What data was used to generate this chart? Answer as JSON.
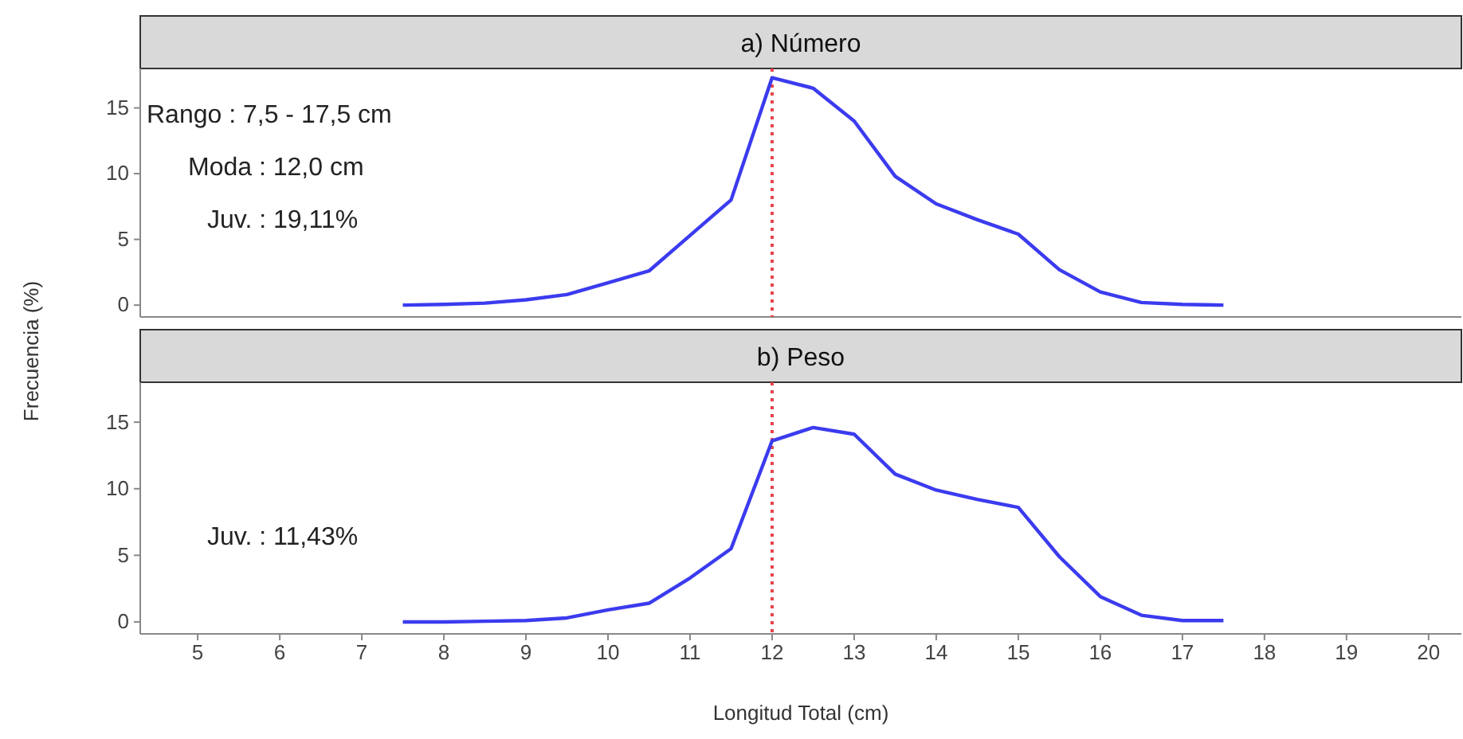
{
  "chart_data": [
    {
      "type": "line",
      "title": "a) Número",
      "ylabel": "Frecuencia (%)",
      "x": [
        7.5,
        8,
        8.5,
        9,
        9.5,
        10,
        10.5,
        11,
        11.5,
        12,
        12.5,
        13,
        13.5,
        14,
        14.5,
        15,
        15.5,
        16,
        16.5,
        17,
        17.5
      ],
      "series": [
        {
          "color": "#3b3bef",
          "values": [
            0,
            0.05,
            0.15,
            0.4,
            0.8,
            1.7,
            2.6,
            5.3,
            8.0,
            17.3,
            16.5,
            14.0,
            9.8,
            7.7,
            6.5,
            5.4,
            2.7,
            1.0,
            0.2,
            0.05,
            0
          ]
        }
      ],
      "xlim": [
        4.3,
        20.4
      ],
      "xticks": [
        5,
        6,
        7,
        8,
        9,
        10,
        11,
        12,
        13,
        14,
        15,
        16,
        17,
        18,
        19,
        20
      ],
      "ylim": [
        -0.9,
        18
      ],
      "yticks": [
        0,
        5,
        10,
        15
      ],
      "tick_labels": "y",
      "marker": "none",
      "line_style": "solid",
      "ref_lines": [
        {
          "axis": "x",
          "value": 12,
          "color": "#e8424a",
          "line_style": "dotted"
        }
      ],
      "annotations": [
        "Rango : 7,5 - 17,5 cm",
        "Moda : 12,0 cm",
        "Juv. : 19,11%"
      ]
    },
    {
      "type": "line",
      "title": "b) Peso",
      "xlabel": "Longitud Total (cm)",
      "x": [
        7.5,
        8,
        8.5,
        9,
        9.5,
        10,
        10.5,
        11,
        11.5,
        12,
        12.5,
        13,
        13.5,
        14,
        14.5,
        15,
        15.5,
        16,
        16.5,
        17,
        17.5
      ],
      "series": [
        {
          "color": "#3b3bef",
          "values": [
            0,
            0,
            0.05,
            0.1,
            0.3,
            0.9,
            1.4,
            3.3,
            5.5,
            13.6,
            14.6,
            14.1,
            11.1,
            9.9,
            9.2,
            8.6,
            4.9,
            1.9,
            0.5,
            0.1,
            0.1
          ]
        }
      ],
      "xlim": [
        4.3,
        20.4
      ],
      "xticks": [
        5,
        6,
        7,
        8,
        9,
        10,
        11,
        12,
        13,
        14,
        15,
        16,
        17,
        18,
        19,
        20
      ],
      "ylim": [
        -0.9,
        18
      ],
      "yticks": [
        0,
        5,
        10,
        15
      ],
      "marker": "none",
      "line_style": "solid",
      "ref_lines": [
        {
          "axis": "x",
          "value": 12,
          "color": "#e8424a",
          "line_style": "dotted"
        }
      ],
      "annotations": [
        "Juv. : 11,43%"
      ]
    }
  ]
}
